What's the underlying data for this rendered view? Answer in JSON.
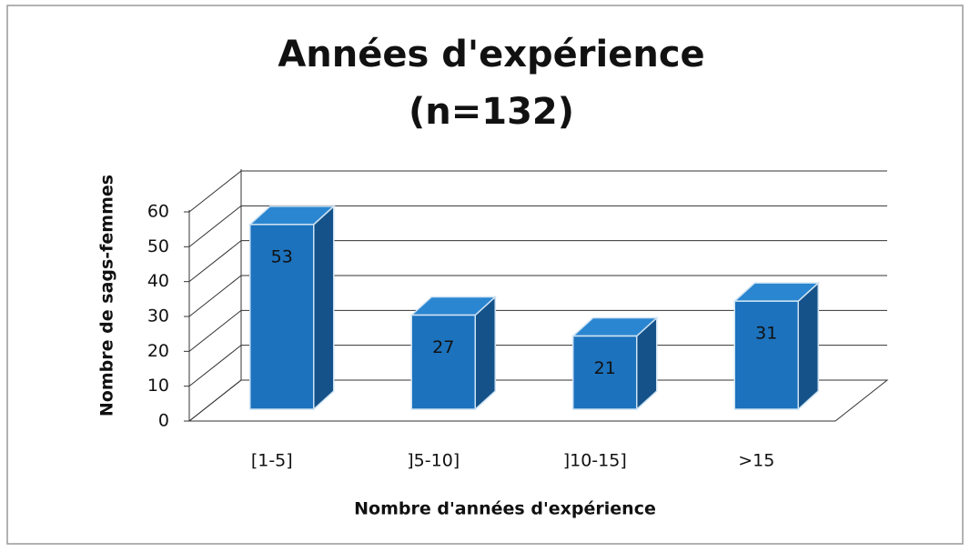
{
  "chart_data": {
    "type": "bar3d",
    "title": "Années d'expérience",
    "subtitle": "(n=132)",
    "x_label": "Nombre d'années d'expérience",
    "y_label": "Nombre de sags-femmes",
    "categories": [
      "[1-5]",
      "]5-10]",
      "]10-15]",
      ">15"
    ],
    "values": [
      53,
      27,
      21,
      31
    ],
    "color": "#1c72bd",
    "ylim": [
      0,
      60
    ],
    "yticks": [
      0,
      10,
      20,
      30,
      40,
      50,
      60
    ],
    "grid": true
  }
}
